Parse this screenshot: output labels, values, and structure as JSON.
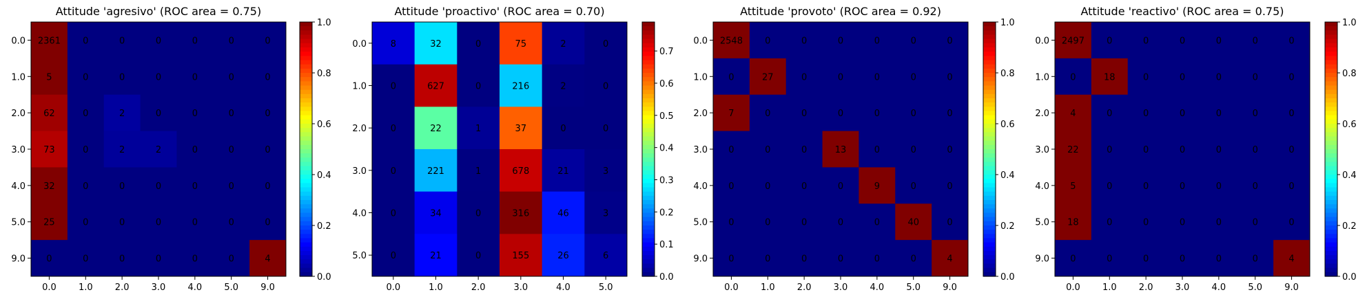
{
  "chart_data": [
    {
      "type": "heatmap",
      "title": "Attitude 'agresivo' (ROC area = 0.75)",
      "x_ticks": [
        "0.0",
        "1.0",
        "2.0",
        "3.0",
        "4.0",
        "5.0",
        "9.0"
      ],
      "y_ticks": [
        "0.0",
        "1.0",
        "2.0",
        "3.0",
        "4.0",
        "5.0",
        "9.0"
      ],
      "matrix": [
        [
          2361,
          0,
          0,
          0,
          0,
          0,
          0
        ],
        [
          5,
          0,
          0,
          0,
          0,
          0,
          0
        ],
        [
          62,
          0,
          2,
          0,
          0,
          0,
          0
        ],
        [
          73,
          0,
          2,
          2,
          0,
          0,
          0
        ],
        [
          32,
          0,
          0,
          0,
          0,
          0,
          0
        ],
        [
          25,
          0,
          0,
          0,
          0,
          0,
          0
        ],
        [
          0,
          0,
          0,
          0,
          0,
          0,
          4
        ]
      ],
      "colorbar": {
        "min": 0,
        "max": 1.0,
        "ticks": [
          "0.0",
          "0.2",
          "0.4",
          "0.6",
          "0.8",
          "1.0"
        ]
      },
      "colormap": "jet"
    },
    {
      "type": "heatmap",
      "title": "Attitude 'proactivo' (ROC area = 0.70)",
      "x_ticks": [
        "0.0",
        "1.0",
        "2.0",
        "3.0",
        "4.0",
        "5.0"
      ],
      "y_ticks": [
        "0.0",
        "1.0",
        "2.0",
        "3.0",
        "4.0",
        "5.0"
      ],
      "matrix": [
        [
          8,
          32,
          0,
          75,
          2,
          0
        ],
        [
          0,
          627,
          0,
          216,
          2,
          0
        ],
        [
          0,
          22,
          1,
          37,
          0,
          0
        ],
        [
          0,
          221,
          1,
          678,
          21,
          3
        ],
        [
          0,
          34,
          0,
          316,
          46,
          3
        ],
        [
          0,
          21,
          0,
          155,
          26,
          6
        ]
      ],
      "colorbar": {
        "min": 0,
        "max": 0.79,
        "ticks": [
          "0.0",
          "0.1",
          "0.2",
          "0.3",
          "0.4",
          "0.5",
          "0.6",
          "0.7"
        ]
      },
      "colormap": "jet"
    },
    {
      "type": "heatmap",
      "title": "Attitude 'provoto' (ROC area = 0.92)",
      "x_ticks": [
        "0.0",
        "1.0",
        "2.0",
        "3.0",
        "4.0",
        "5.0",
        "9.0"
      ],
      "y_ticks": [
        "0.0",
        "1.0",
        "2.0",
        "3.0",
        "4.0",
        "5.0",
        "9.0"
      ],
      "matrix": [
        [
          2548,
          0,
          0,
          0,
          0,
          0,
          0
        ],
        [
          0,
          27,
          0,
          0,
          0,
          0,
          0
        ],
        [
          7,
          0,
          0,
          0,
          0,
          0,
          0
        ],
        [
          0,
          0,
          0,
          13,
          0,
          0,
          0
        ],
        [
          0,
          0,
          0,
          0,
          9,
          0,
          0
        ],
        [
          0,
          0,
          0,
          0,
          0,
          40,
          0
        ],
        [
          0,
          0,
          0,
          0,
          0,
          0,
          4
        ]
      ],
      "colorbar": {
        "min": 0,
        "max": 1.0,
        "ticks": [
          "0.0",
          "0.2",
          "0.4",
          "0.6",
          "0.8",
          "1.0"
        ]
      },
      "colormap": "jet"
    },
    {
      "type": "heatmap",
      "title": "Attitude 'reactivo' (ROC area = 0.75)",
      "x_ticks": [
        "0.0",
        "1.0",
        "2.0",
        "3.0",
        "4.0",
        "5.0",
        "9.0"
      ],
      "y_ticks": [
        "0.0",
        "1.0",
        "2.0",
        "3.0",
        "4.0",
        "5.0",
        "9.0"
      ],
      "matrix": [
        [
          2497,
          0,
          0,
          0,
          0,
          0,
          0
        ],
        [
          0,
          18,
          0,
          0,
          0,
          0,
          0
        ],
        [
          4,
          0,
          0,
          0,
          0,
          0,
          0
        ],
        [
          22,
          0,
          0,
          0,
          0,
          0,
          0
        ],
        [
          5,
          0,
          0,
          0,
          0,
          0,
          0
        ],
        [
          18,
          0,
          0,
          0,
          0,
          0,
          0
        ],
        [
          0,
          0,
          0,
          0,
          0,
          0,
          4
        ]
      ],
      "colorbar": {
        "min": 0,
        "max": 1.0,
        "ticks": [
          "0.0",
          "0.2",
          "0.4",
          "0.6",
          "0.8",
          "1.0"
        ]
      },
      "colormap": "jet"
    }
  ]
}
